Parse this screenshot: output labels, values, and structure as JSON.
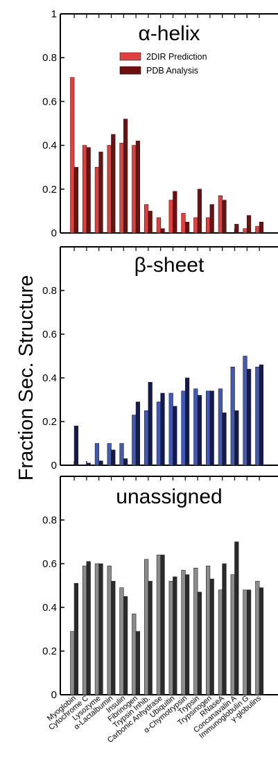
{
  "figure": {
    "ylabel": "Fraction Sec. Structure",
    "categories": [
      "Myoglobin",
      "Cytochrome C",
      "Lysozyme",
      "α-Lactalbumin",
      "Insulin",
      "Fibrinogen",
      "Trypsin Inhib.",
      "Carbonic Anhydrase",
      "Ubiquitin",
      "α-Chymotrypsin",
      "Trypsin",
      "Trypsinogen",
      "RNaseA",
      "Concanavalin A",
      "Immunoglobulin G",
      "γ-globulins"
    ]
  },
  "chart_data": [
    {
      "type": "bar",
      "title": "α-helix",
      "categories": [
        "Myoglobin",
        "Cytochrome C",
        "Lysozyme",
        "α-Lactalbumin",
        "Insulin",
        "Fibrinogen",
        "Trypsin Inhib.",
        "Carbonic Anhydrase",
        "Ubiquitin",
        "α-Chymotrypsin",
        "Trypsin",
        "Trypsinogen",
        "RNaseA",
        "Concanavalin A",
        "Immunoglobulin G",
        "γ-globulins"
      ],
      "series": [
        {
          "name": "2DIR Prediction",
          "color": "#e2403f",
          "values": [
            0.71,
            0.4,
            0.3,
            0.4,
            0.41,
            0.4,
            0.13,
            0.07,
            0.15,
            0.09,
            0.07,
            0.07,
            0.17,
            0.0,
            0.02,
            0.03
          ]
        },
        {
          "name": "PDB Analysis",
          "color": "#6e0f10",
          "values": [
            0.3,
            0.39,
            0.37,
            0.45,
            0.52,
            0.42,
            0.1,
            0.02,
            0.19,
            0.05,
            0.2,
            0.13,
            0.15,
            0.04,
            0.08,
            0.05
          ]
        }
      ],
      "ylim": [
        0,
        1
      ],
      "yticks": [
        "0",
        "0.2",
        "0.4",
        "0.6",
        "0.8",
        "1"
      ],
      "legend_position": "top-center",
      "grid": false
    },
    {
      "type": "bar",
      "title": "β-sheet",
      "categories": [
        "Myoglobin",
        "Cytochrome C",
        "Lysozyme",
        "α-Lactalbumin",
        "Insulin",
        "Fibrinogen",
        "Trypsin Inhib.",
        "Carbonic Anhydrase",
        "Ubiquitin",
        "α-Chymotrypsin",
        "Trypsin",
        "Trypsinogen",
        "RNaseA",
        "Concanavalin A",
        "Immunoglobulin G",
        "γ-globulins"
      ],
      "series": [
        {
          "color": "#4259b6",
          "values": [
            0.0,
            0.0,
            0.1,
            0.1,
            0.1,
            0.23,
            0.25,
            0.29,
            0.33,
            0.34,
            0.35,
            0.34,
            0.35,
            0.45,
            0.5,
            0.45
          ]
        },
        {
          "color": "#151a4e",
          "values": [
            0.18,
            0.01,
            0.02,
            0.07,
            0.03,
            0.29,
            0.38,
            0.33,
            0.27,
            0.4,
            0.32,
            0.34,
            0.24,
            0.25,
            0.44,
            0.46
          ]
        }
      ],
      "ylim": [
        0,
        1
      ],
      "yticks": [
        "0",
        "0.2",
        "0.4",
        "0.6",
        "0.8"
      ],
      "grid": false
    },
    {
      "type": "bar",
      "title": "unassigned",
      "categories": [
        "Myoglobin",
        "Cytochrome C",
        "Lysozyme",
        "α-Lactalbumin",
        "Insulin",
        "Fibrinogen",
        "Trypsin Inhib.",
        "Carbonic Anhydrase",
        "Ubiquitin",
        "α-Chymotrypsin",
        "Trypsin",
        "Trypsinogen",
        "RNaseA",
        "Concanavalin A",
        "Immunoglobulin G",
        "γ-globulins"
      ],
      "series": [
        {
          "color": "#8c8c8c",
          "values": [
            0.29,
            0.59,
            0.6,
            0.59,
            0.49,
            0.37,
            0.62,
            0.64,
            0.52,
            0.57,
            0.58,
            0.59,
            0.48,
            0.55,
            0.48,
            0.52
          ]
        },
        {
          "color": "#2b2b2b",
          "values": [
            0.51,
            0.61,
            0.6,
            0.52,
            0.45,
            0.29,
            0.52,
            0.64,
            0.54,
            0.55,
            0.47,
            0.53,
            0.6,
            0.7,
            0.48,
            0.49
          ]
        }
      ],
      "ylim": [
        0,
        1
      ],
      "yticks": [
        "0",
        "0.2",
        "0.4",
        "0.6",
        "0.8"
      ],
      "grid": false
    }
  ]
}
